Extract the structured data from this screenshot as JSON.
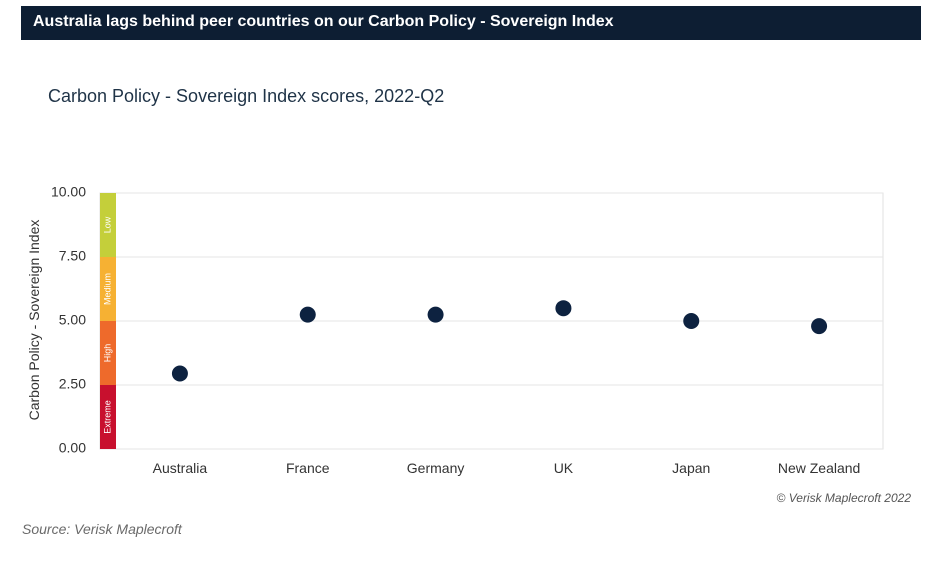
{
  "banner": {
    "title": "Australia lags behind peer countries on our Carbon Policy - Sovereign Index"
  },
  "chart_data": {
    "type": "scatter",
    "title": "Carbon Policy - Sovereign Index scores, 2022-Q2",
    "xlabel": "",
    "ylabel": "Carbon Policy - Sovereign Index",
    "categories": [
      "Australia",
      "France",
      "Germany",
      "UK",
      "Japan",
      "New Zealand"
    ],
    "values": [
      2.95,
      5.25,
      5.25,
      5.5,
      5.0,
      4.8
    ],
    "ylim": [
      0,
      10
    ],
    "yticks": [
      "0.00",
      "2.50",
      "5.00",
      "7.50",
      "10.00"
    ],
    "grid": true,
    "marker_color": "#0d2240",
    "risk_bands": [
      {
        "label": "Extreme",
        "from": 0,
        "to": 2.5,
        "color": "#c8102e"
      },
      {
        "label": "High",
        "from": 2.5,
        "to": 5.0,
        "color": "#ee6a2b"
      },
      {
        "label": "Medium",
        "from": 5.0,
        "to": 7.5,
        "color": "#f6b133"
      },
      {
        "label": "Low",
        "from": 7.5,
        "to": 10.0,
        "color": "#c4cf3a"
      }
    ]
  },
  "footer": {
    "copyright": "© Verisk Maplecroft  2022",
    "source": "Source: Verisk Maplecroft"
  }
}
